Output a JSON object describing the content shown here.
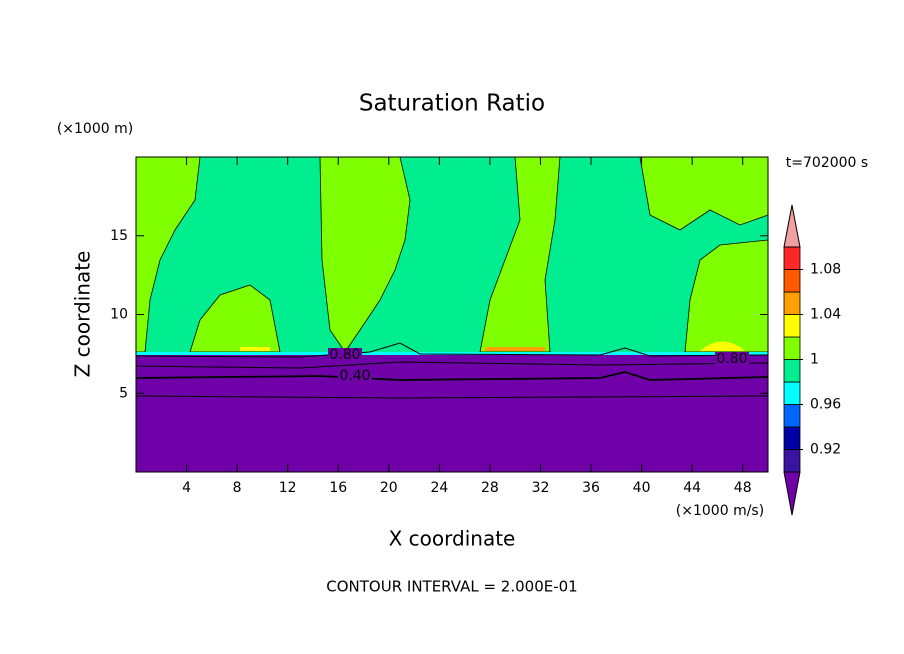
{
  "chart_data": {
    "type": "contour",
    "title": "Saturation Ratio",
    "x_label": "X coordinate",
    "y_label": "Z coordinate",
    "x_unit": "(×1000 m/s)",
    "y_unit": "(×1000 m)",
    "time_label": "t=702000 s",
    "footer": "CONTOUR INTERVAL = 2.000E-01",
    "xlim": [
      0,
      50
    ],
    "xticks": [
      4,
      8,
      12,
      16,
      20,
      24,
      28,
      32,
      36,
      40,
      44,
      48
    ],
    "ylim": [
      0,
      20
    ],
    "yticks": [
      5,
      10,
      15
    ],
    "contour_labels": [
      {
        "value": 0.8,
        "label": "0.80"
      },
      {
        "value": 0.4,
        "label": "0.40"
      },
      {
        "value": 0.8,
        "label": "0.80"
      }
    ],
    "colorbar": {
      "lim": [
        0.9,
        1.1
      ],
      "ticks": [
        0.92,
        0.96,
        1,
        1.04,
        1.08
      ],
      "colors": [
        "#7000a8",
        "#3a14a0",
        "#0000a8",
        "#0064ff",
        "#00ffff",
        "#00ee90",
        "#80ff00",
        "#ffff00",
        "#ffa000",
        "#ff5a00",
        "#ff2828",
        "#f0a0a0"
      ]
    }
  }
}
